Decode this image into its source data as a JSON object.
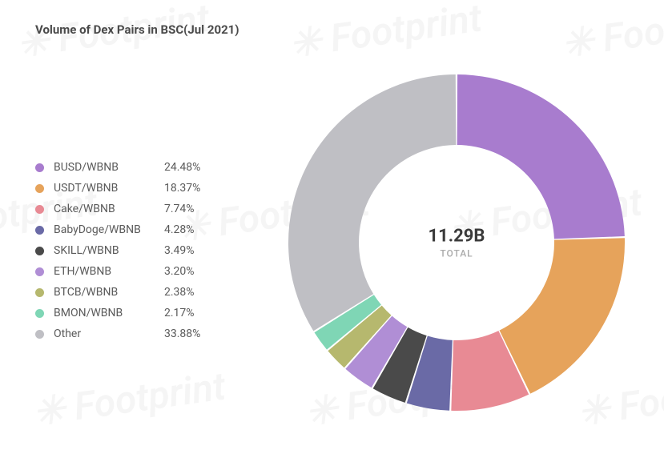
{
  "title": "Volume of Dex Pairs in BSC(Jul 2021)",
  "center": {
    "total": "11.29B",
    "caption": "TOTAL"
  },
  "chart": {
    "type": "donut",
    "outer_radius": 210,
    "inner_radius": 122,
    "gap_deg": 0.6,
    "start_angle_deg": 0,
    "background_color": "#ffffff",
    "segments": [
      {
        "label": "BUSD/WBNB",
        "percent": 24.48,
        "color": "#a87cce",
        "pct_text": "24.48%"
      },
      {
        "label": "USDT/WBNB",
        "percent": 18.37,
        "color": "#e6a35b",
        "pct_text": "18.37%"
      },
      {
        "label": "Cake/WBNB",
        "percent": 7.74,
        "color": "#e88a94",
        "pct_text": "7.74%"
      },
      {
        "label": "BabyDoge/WBNB",
        "percent": 4.28,
        "color": "#6a6aa6",
        "pct_text": "4.28%"
      },
      {
        "label": "SKILL/WBNB",
        "percent": 3.49,
        "color": "#4a4a4a",
        "pct_text": "3.49%"
      },
      {
        "label": "ETH/WBNB",
        "percent": 3.2,
        "color": "#b08ed5",
        "pct_text": "3.20%"
      },
      {
        "label": "BTCB/WBNB",
        "percent": 2.38,
        "color": "#b6b86e",
        "pct_text": "2.38%"
      },
      {
        "label": "BMON/WBNB",
        "percent": 2.17,
        "color": "#7fd6b5",
        "pct_text": "2.17%"
      },
      {
        "label": "Other",
        "percent": 33.88,
        "color": "#bfbfc4",
        "pct_text": "33.88%"
      }
    ]
  },
  "title_fontsize": 15,
  "legend_fontsize": 14,
  "center_total_fontsize": 22,
  "watermark_text": "✳ Footprint"
}
